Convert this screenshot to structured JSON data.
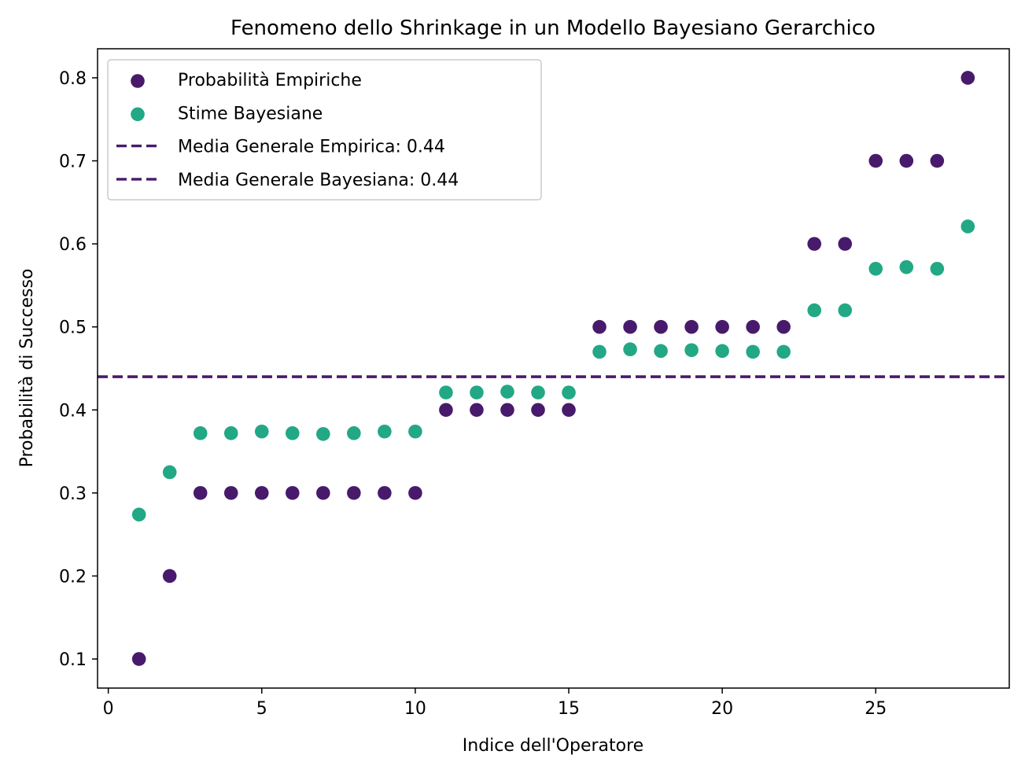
{
  "chart_data": {
    "type": "scatter",
    "title": "Fenomeno dello Shrinkage in un Modello Bayesiano Gerarchico",
    "xlabel": "Indice dell'Operatore",
    "ylabel": "Probabilità di Successo",
    "xlim": [
      -0.35,
      29.35
    ],
    "ylim": [
      0.065,
      0.835
    ],
    "xticks": [
      0,
      5,
      10,
      15,
      20,
      25
    ],
    "yticks": [
      0.1,
      0.2,
      0.3,
      0.4,
      0.5,
      0.6,
      0.7,
      0.8
    ],
    "grid": false,
    "legend_position": "upper-left",
    "x": [
      1,
      2,
      3,
      4,
      5,
      6,
      7,
      8,
      9,
      10,
      11,
      12,
      13,
      14,
      15,
      16,
      17,
      18,
      19,
      20,
      21,
      22,
      23,
      24,
      25,
      26,
      27,
      28
    ],
    "series": [
      {
        "name": "Probabilità Empiriche",
        "kind": "scatter",
        "color": "#481a6c",
        "values": [
          0.1,
          0.2,
          0.3,
          0.3,
          0.3,
          0.3,
          0.3,
          0.3,
          0.3,
          0.3,
          0.4,
          0.4,
          0.4,
          0.4,
          0.4,
          0.5,
          0.5,
          0.5,
          0.5,
          0.5,
          0.5,
          0.5,
          0.6,
          0.6,
          0.7,
          0.7,
          0.7,
          0.8
        ]
      },
      {
        "name": "Stime Bayesiane",
        "kind": "scatter",
        "color": "#22a884",
        "values": [
          0.274,
          0.325,
          0.372,
          0.372,
          0.374,
          0.372,
          0.371,
          0.372,
          0.374,
          0.374,
          0.421,
          0.421,
          0.422,
          0.421,
          0.421,
          0.47,
          0.473,
          0.471,
          0.472,
          0.471,
          0.47,
          0.47,
          0.52,
          0.52,
          0.57,
          0.572,
          0.57,
          0.621
        ]
      }
    ],
    "hlines": [
      {
        "name": "Media Generale Empirica: 0.44",
        "y": 0.44,
        "color": "#481a6c",
        "style": "dashed"
      },
      {
        "name": "Media Generale Bayesiana: 0.44",
        "y": 0.44,
        "color": "#481a6c",
        "style": "dashed"
      }
    ]
  }
}
